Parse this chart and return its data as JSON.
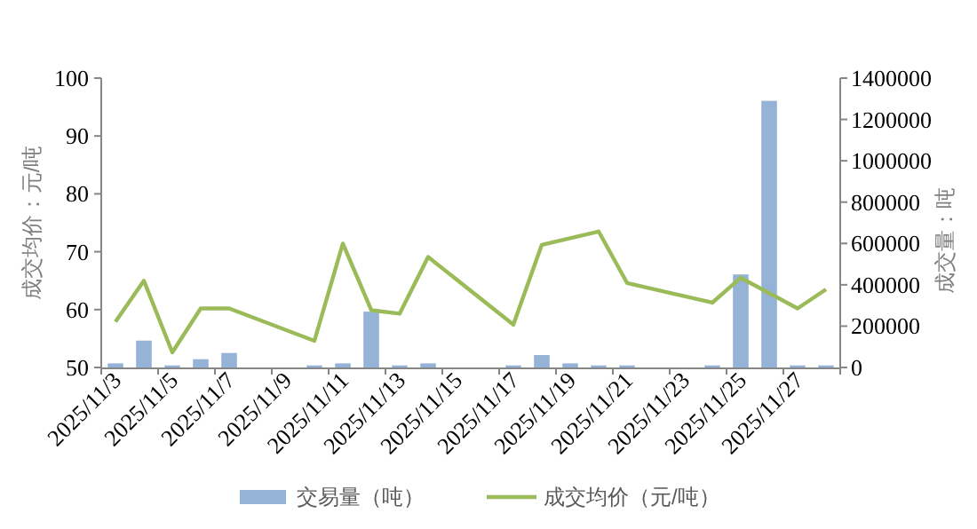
{
  "chart_data": {
    "type": "bar",
    "categories": [
      "2025/11/3",
      null,
      "2025/11/5",
      null,
      "2025/11/7",
      null,
      "2025/11/9",
      null,
      "2025/11/11",
      null,
      "2025/11/13",
      null,
      "2025/11/15",
      null,
      "2025/11/17",
      null,
      "2025/11/19",
      null,
      "2025/11/21",
      null,
      "2025/11/23",
      null,
      "2025/11/25",
      null,
      "2025/11/27",
      null
    ],
    "ylabel": "成交均价：元/吨",
    "y2label": "成交量：吨",
    "ylim": [
      50,
      100
    ],
    "yticks": [
      50,
      60,
      70,
      80,
      90,
      100
    ],
    "y2lim": [
      0,
      1400000
    ],
    "y2ticks": [
      0,
      200000,
      400000,
      600000,
      800000,
      1000000,
      1200000,
      1400000
    ],
    "legend": "bottom",
    "series": [
      {
        "name": "交易量（吨）",
        "axis": "y2",
        "color": "#95b3d7",
        "values": [
          20000,
          130000,
          10000,
          40000,
          70000,
          null,
          null,
          10000,
          20000,
          270000,
          10000,
          20000,
          null,
          null,
          10000,
          60000,
          20000,
          10000,
          10000,
          null,
          null,
          10000,
          450000,
          1290000,
          10000,
          10000
        ]
      },
      {
        "name": "成交均价（元/吨）",
        "type": "line",
        "axis": "y",
        "color": "#9bbb59",
        "values": [
          57.9,
          65.0,
          52.6,
          60.2,
          60.2,
          null,
          null,
          54.6,
          71.4,
          59.9,
          59.3,
          69.1,
          null,
          null,
          57.4,
          71.2,
          null,
          73.5,
          64.6,
          null,
          null,
          61.2,
          65.5,
          null,
          60.2,
          63.5
        ]
      }
    ]
  }
}
